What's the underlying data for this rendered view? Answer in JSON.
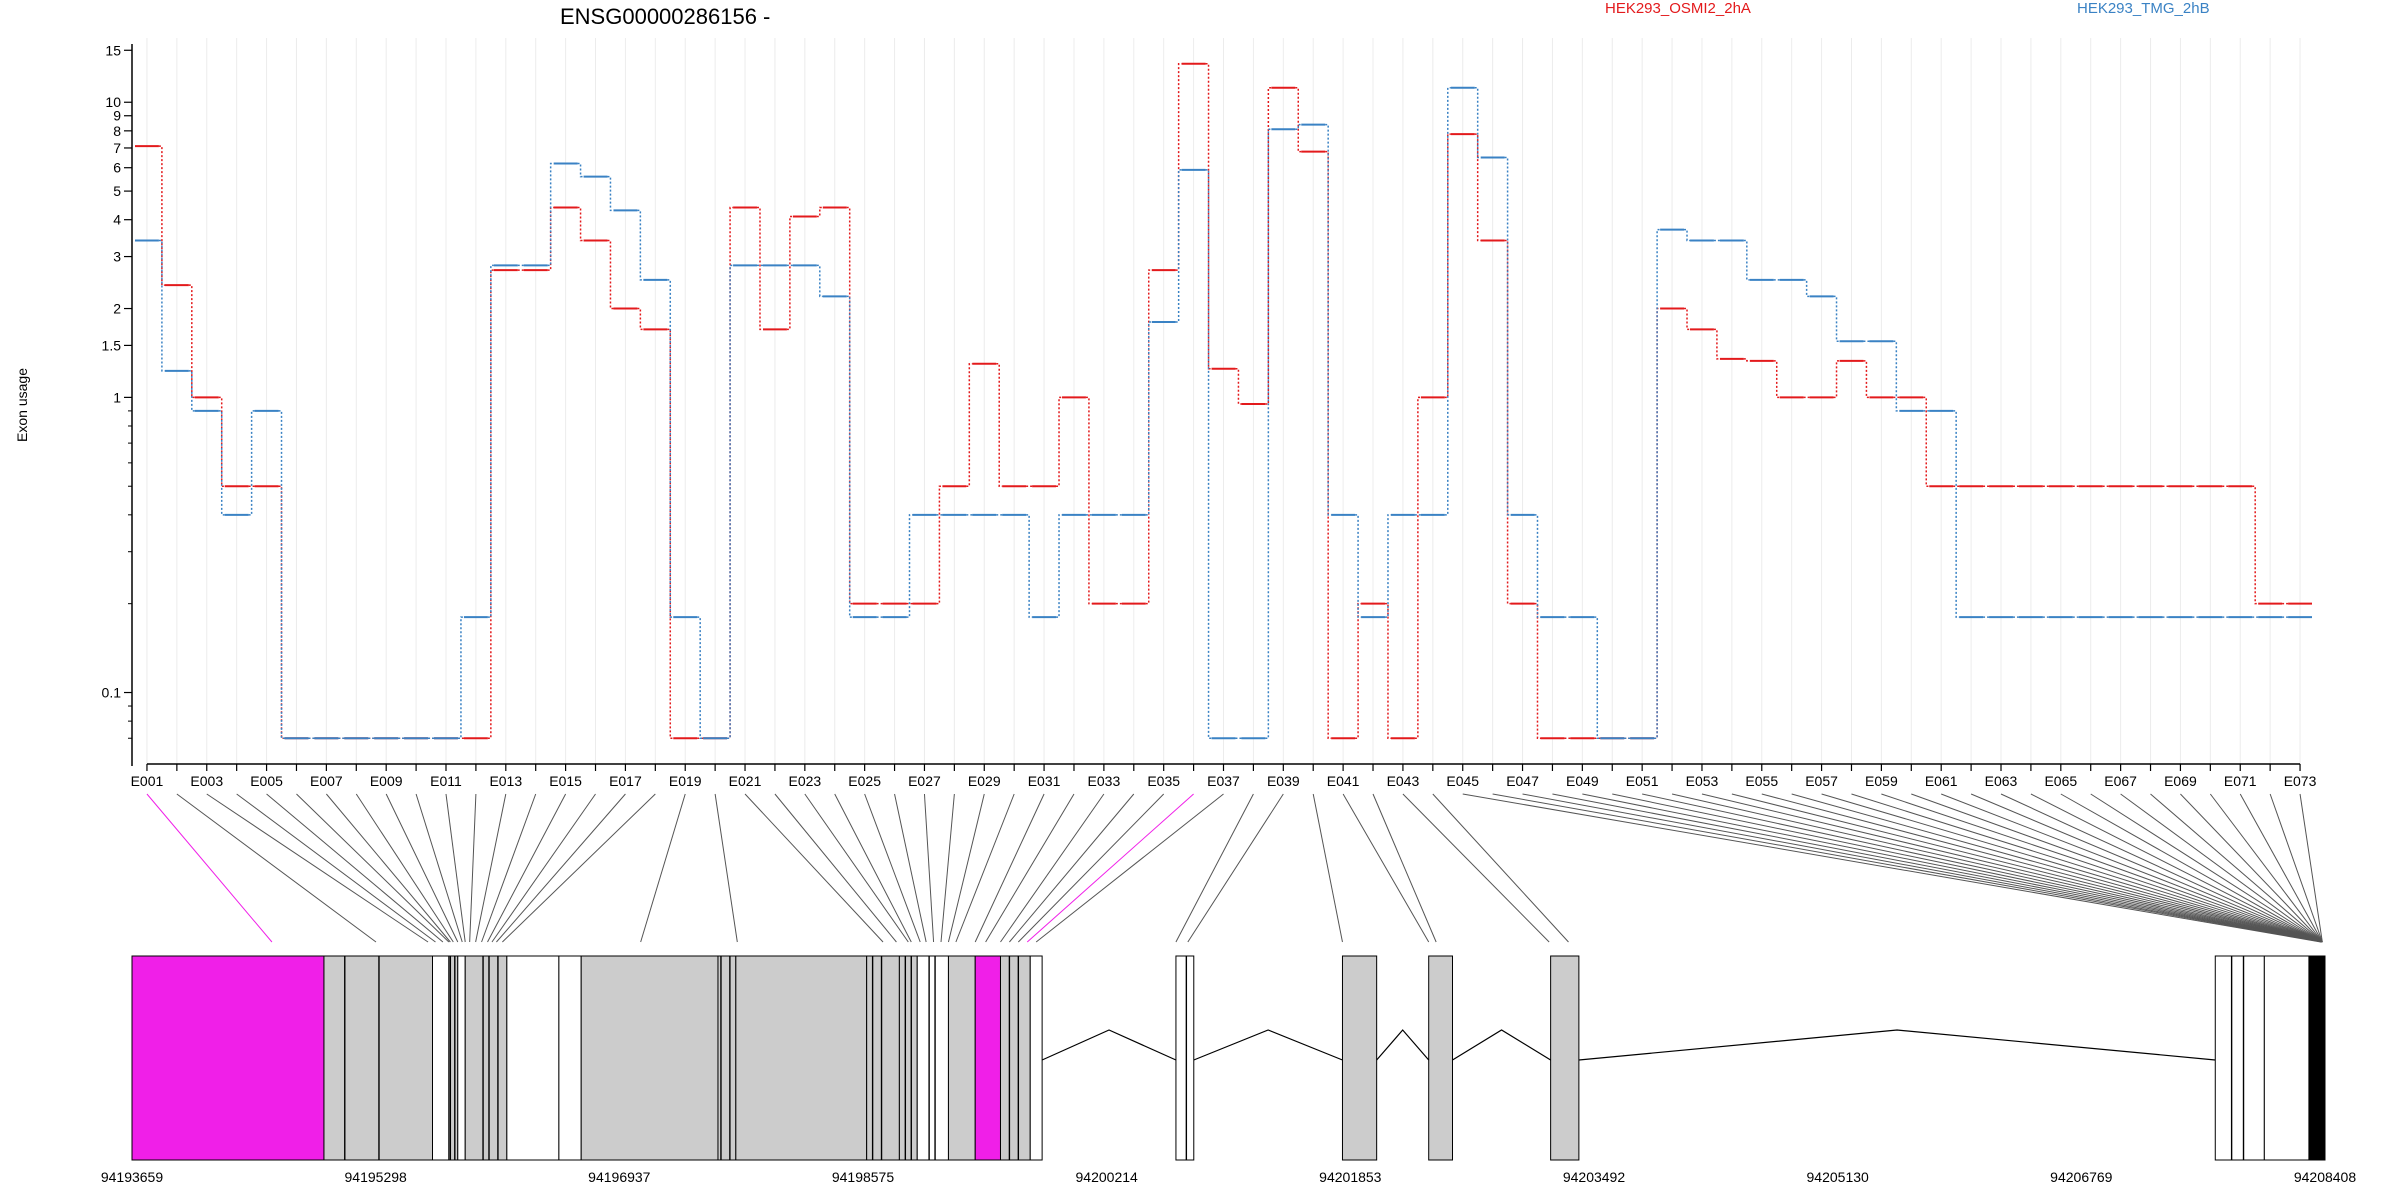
{
  "title": "ENSG00000286156 -",
  "ylabel": "Exon usage",
  "legend": [
    {
      "name": "HEK293_OSMI2_2hA",
      "color": "#E31A1C"
    },
    {
      "name": "HEK293_TMG_2hB",
      "color": "#3A82C4"
    }
  ],
  "coordinate_labels": [
    "94193659",
    "94195298",
    "94196937",
    "94198575",
    "94200214",
    "94201853",
    "94203492",
    "94205130",
    "94206769",
    "94208408"
  ],
  "chart_data": {
    "type": "line",
    "title": "ENSG00000286156 -",
    "xlabel": "",
    "ylabel": "Exon usage",
    "yscale": "log",
    "ylim": [
      0.06,
      16
    ],
    "y_ticks": [
      0.1,
      1,
      1.5,
      2,
      3,
      4,
      5,
      6,
      7,
      8,
      9,
      10,
      15
    ],
    "grid": true,
    "legend_position": "top",
    "x_tick_labels": [
      "E001",
      "E003",
      "E005",
      "E007",
      "E009",
      "E011",
      "E013",
      "E015",
      "E017",
      "E019",
      "E021",
      "E023",
      "E025",
      "E027",
      "E029",
      "E031",
      "E033",
      "E035",
      "E037",
      "E039",
      "E041",
      "E043",
      "E045",
      "E047",
      "E049",
      "E051",
      "E053",
      "E055",
      "E057",
      "E059",
      "E061",
      "E063",
      "E065",
      "E067",
      "E069",
      "E071",
      "E073"
    ],
    "categories": [
      "E001",
      "E002",
      "E003",
      "E004",
      "E005",
      "E006",
      "E007",
      "E008",
      "E009",
      "E010",
      "E011",
      "E012",
      "E013",
      "E014",
      "E015",
      "E016",
      "E017",
      "E018",
      "E019",
      "E020",
      "E021",
      "E022",
      "E023",
      "E024",
      "E025",
      "E026",
      "E027",
      "E028",
      "E029",
      "E030",
      "E031",
      "E032",
      "E033",
      "E034",
      "E035",
      "E036",
      "E037",
      "E038",
      "E039",
      "E040",
      "E041",
      "E042",
      "E043",
      "E044",
      "E045",
      "E046",
      "E047",
      "E048",
      "E049",
      "E050",
      "E051",
      "E052",
      "E053",
      "E054",
      "E055",
      "E056",
      "E057",
      "E058",
      "E059",
      "E060",
      "E061",
      "E062",
      "E063",
      "E064",
      "E065",
      "E066",
      "E067",
      "E068",
      "E069",
      "E070",
      "E071",
      "E072",
      "E073"
    ],
    "series": [
      {
        "name": "HEK293_OSMI2_2hA",
        "color": "#E31A1C",
        "values": [
          7.1,
          2.4,
          1.0,
          0.5,
          0.5,
          0.07,
          0.07,
          0.07,
          0.07,
          0.07,
          0.07,
          0.07,
          2.7,
          2.7,
          4.4,
          3.4,
          2.0,
          1.7,
          0.07,
          0.07,
          4.4,
          1.7,
          4.1,
          4.4,
          0.2,
          0.2,
          0.2,
          0.5,
          1.3,
          0.5,
          0.5,
          1.0,
          0.2,
          0.2,
          2.7,
          13.5,
          1.25,
          0.95,
          11.2,
          6.8,
          0.07,
          0.2,
          0.07,
          1.0,
          7.8,
          3.4,
          0.2,
          0.07,
          0.07,
          0.07,
          0.07,
          2.0,
          1.7,
          1.35,
          1.33,
          1.0,
          1.0,
          1.33,
          1.0,
          1.0,
          0.5,
          0.5,
          0.5,
          0.5,
          0.5,
          0.5,
          0.5,
          0.5,
          0.5,
          0.5,
          0.5,
          0.2,
          0.2
        ]
      },
      {
        "name": "HEK293_TMG_2hB",
        "color": "#3A82C4",
        "values": [
          3.4,
          1.23,
          0.9,
          0.4,
          0.9,
          0.07,
          0.07,
          0.07,
          0.07,
          0.07,
          0.07,
          0.18,
          2.8,
          2.8,
          6.2,
          5.6,
          4.3,
          2.5,
          0.18,
          0.07,
          2.8,
          2.8,
          2.8,
          2.2,
          0.18,
          0.18,
          0.4,
          0.4,
          0.4,
          0.4,
          0.18,
          0.4,
          0.4,
          0.4,
          1.8,
          5.9,
          0.07,
          0.07,
          8.1,
          8.4,
          0.4,
          0.18,
          0.4,
          0.4,
          11.2,
          6.5,
          0.4,
          0.18,
          0.18,
          0.07,
          0.07,
          3.7,
          3.4,
          3.4,
          2.5,
          2.5,
          2.2,
          1.55,
          1.55,
          0.9,
          0.9,
          0.18,
          0.18,
          0.18,
          0.18,
          0.18,
          0.18,
          0.18,
          0.18,
          0.18,
          0.18,
          0.18,
          0.18
        ]
      }
    ]
  },
  "gene_model": {
    "highlighted_exons": [
      "E001",
      "E036"
    ],
    "highlight_color": "#F01FE8",
    "exon_fill": "#CCCCCC",
    "coordinate_range": [
      94193659,
      94208408
    ]
  }
}
